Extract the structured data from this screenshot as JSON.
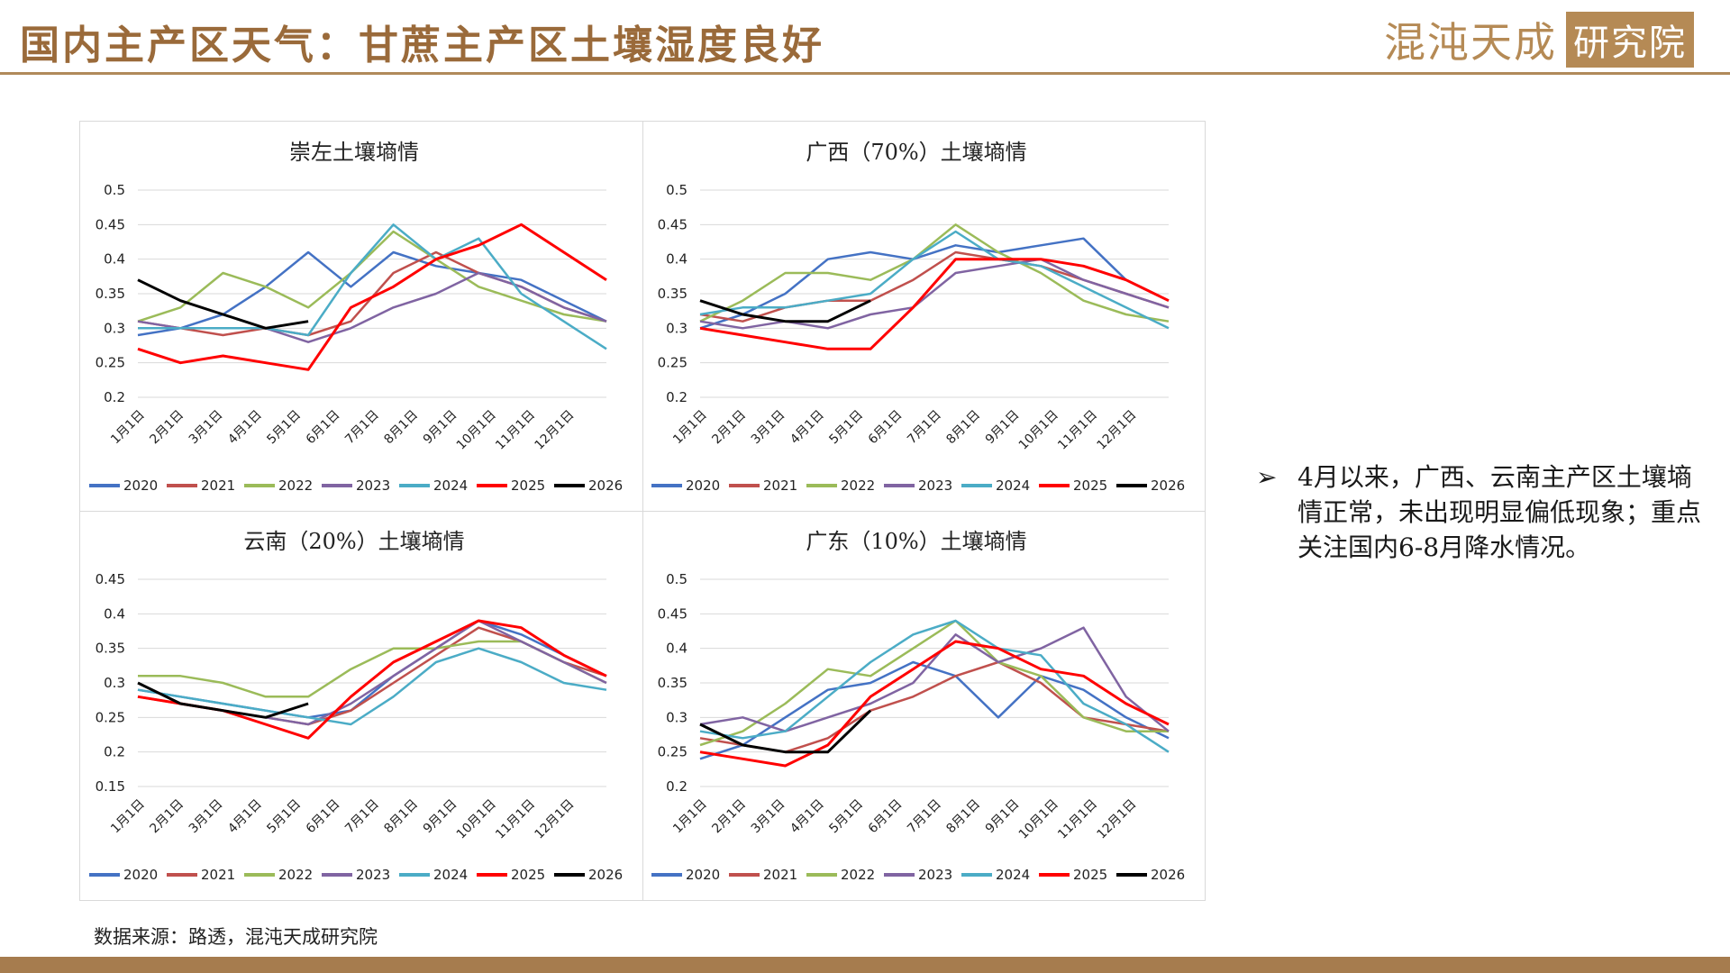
{
  "header": {
    "title": "国内主产区天气：甘蔗主产区土壤湿度良好",
    "brand_text": "混沌天成",
    "brand_box": "研究院"
  },
  "note": {
    "bullet": "➢",
    "text": "4月以来，广西、云南主产区土壤墒情正常，未出现明显偏低现象；重点关注国内6-8月降水情况。"
  },
  "source": "数据来源：路透，混沌天成研究院",
  "colors": {
    "2020": "#4472c4",
    "2021": "#c0504d",
    "2022": "#9bbb59",
    "2023": "#8064a2",
    "2024": "#4bacc6",
    "2025": "#ff0000",
    "2026": "#000000"
  },
  "chart_data": [
    {
      "type": "line",
      "title": "崇左土壤墒情",
      "ylim": [
        0.2,
        0.5
      ],
      "yticks": [
        "0.5",
        "0.45",
        "0.4",
        "0.35",
        "0.3",
        "0.25",
        "0.2"
      ],
      "x_ticks": [
        "1月1日",
        "2月1日",
        "3月1日",
        "4月1日",
        "5月1日",
        "6月1日",
        "7月1日",
        "8月1日",
        "9月1日",
        "10月1日",
        "11月1日",
        "12月1日"
      ],
      "legend": [
        "2020",
        "2021",
        "2022",
        "2023",
        "2024",
        "2025",
        "2026"
      ],
      "legend_position": "bottom",
      "series": [
        {
          "name": "2020",
          "values": [
            0.29,
            0.3,
            0.32,
            0.36,
            0.41,
            0.36,
            0.41,
            0.39,
            0.38,
            0.37,
            0.34,
            0.31
          ]
        },
        {
          "name": "2021",
          "values": [
            0.31,
            0.3,
            0.29,
            0.3,
            0.29,
            0.31,
            0.38,
            0.41,
            0.38,
            0.36,
            0.33,
            0.31
          ]
        },
        {
          "name": "2022",
          "values": [
            0.31,
            0.33,
            0.38,
            0.36,
            0.33,
            0.38,
            0.44,
            0.4,
            0.36,
            0.34,
            0.32,
            0.31
          ]
        },
        {
          "name": "2023",
          "values": [
            0.31,
            0.3,
            0.3,
            0.3,
            0.28,
            0.3,
            0.33,
            0.35,
            0.38,
            0.36,
            0.33,
            0.31
          ]
        },
        {
          "name": "2024",
          "values": [
            0.3,
            0.3,
            0.3,
            0.3,
            0.29,
            0.38,
            0.45,
            0.4,
            0.43,
            0.35,
            0.31,
            0.27
          ]
        },
        {
          "name": "2025",
          "values": [
            0.27,
            0.25,
            0.26,
            0.25,
            0.24,
            0.33,
            0.36,
            0.4,
            0.42,
            0.45,
            0.41,
            0.37
          ]
        },
        {
          "name": "2026",
          "values": [
            0.37,
            0.34,
            0.32,
            0.3,
            0.31
          ]
        }
      ]
    },
    {
      "type": "line",
      "title": "广西（70%）土壤墒情",
      "ylim": [
        0.2,
        0.5
      ],
      "yticks": [
        "0.5",
        "0.45",
        "0.4",
        "0.35",
        "0.3",
        "0.25",
        "0.2"
      ],
      "x_ticks": [
        "1月1日",
        "2月1日",
        "3月1日",
        "4月1日",
        "5月1日",
        "6月1日",
        "7月1日",
        "8月1日",
        "9月1日",
        "10月1日",
        "11月1日",
        "12月1日"
      ],
      "legend": [
        "2020",
        "2021",
        "2022",
        "2023",
        "2024",
        "2025",
        "2026"
      ],
      "legend_position": "bottom",
      "series": [
        {
          "name": "2020",
          "values": [
            0.3,
            0.32,
            0.35,
            0.4,
            0.41,
            0.4,
            0.42,
            0.41,
            0.42,
            0.43,
            0.37,
            0.34
          ]
        },
        {
          "name": "2021",
          "values": [
            0.32,
            0.31,
            0.33,
            0.34,
            0.34,
            0.37,
            0.41,
            0.4,
            0.39,
            0.37,
            0.35,
            0.33
          ]
        },
        {
          "name": "2022",
          "values": [
            0.31,
            0.34,
            0.38,
            0.38,
            0.37,
            0.4,
            0.45,
            0.41,
            0.38,
            0.34,
            0.32,
            0.31
          ]
        },
        {
          "name": "2023",
          "values": [
            0.31,
            0.3,
            0.31,
            0.3,
            0.32,
            0.33,
            0.38,
            0.39,
            0.4,
            0.37,
            0.35,
            0.33
          ]
        },
        {
          "name": "2024",
          "values": [
            0.32,
            0.33,
            0.33,
            0.34,
            0.35,
            0.4,
            0.44,
            0.4,
            0.39,
            0.36,
            0.33,
            0.3
          ]
        },
        {
          "name": "2025",
          "values": [
            0.3,
            0.29,
            0.28,
            0.27,
            0.27,
            0.33,
            0.4,
            0.4,
            0.4,
            0.39,
            0.37,
            0.34
          ]
        },
        {
          "name": "2026",
          "values": [
            0.34,
            0.32,
            0.31,
            0.31,
            0.34
          ]
        }
      ]
    },
    {
      "type": "line",
      "title": "云南（20%）土壤墒情",
      "ylim": [
        0.15,
        0.45
      ],
      "yticks": [
        "0.45",
        "0.4",
        "0.35",
        "0.3",
        "0.25",
        "0.2",
        "0.15"
      ],
      "x_ticks": [
        "1月1日",
        "2月1日",
        "3月1日",
        "4月1日",
        "5月1日",
        "6月1日",
        "7月1日",
        "8月1日",
        "9月1日",
        "10月1日",
        "11月1日",
        "12月1日"
      ],
      "legend": [
        "2020",
        "2021",
        "2022",
        "2023",
        "2024",
        "2025",
        "2026"
      ],
      "legend_position": "bottom",
      "series": [
        {
          "name": "2020",
          "values": [
            0.29,
            0.28,
            0.27,
            0.26,
            0.25,
            0.26,
            0.31,
            0.35,
            0.39,
            0.37,
            0.34,
            0.31
          ]
        },
        {
          "name": "2021",
          "values": [
            0.28,
            0.27,
            0.26,
            0.25,
            0.24,
            0.26,
            0.3,
            0.34,
            0.38,
            0.36,
            0.33,
            0.31
          ]
        },
        {
          "name": "2022",
          "values": [
            0.31,
            0.31,
            0.3,
            0.28,
            0.28,
            0.32,
            0.35,
            0.35,
            0.36,
            0.36,
            0.33,
            0.3
          ]
        },
        {
          "name": "2023",
          "values": [
            0.28,
            0.27,
            0.26,
            0.25,
            0.24,
            0.27,
            0.31,
            0.35,
            0.39,
            0.36,
            0.33,
            0.3
          ]
        },
        {
          "name": "2024",
          "values": [
            0.29,
            0.28,
            0.27,
            0.26,
            0.25,
            0.24,
            0.28,
            0.33,
            0.35,
            0.33,
            0.3,
            0.29
          ]
        },
        {
          "name": "2025",
          "values": [
            0.28,
            0.27,
            0.26,
            0.24,
            0.22,
            0.28,
            0.33,
            0.36,
            0.39,
            0.38,
            0.34,
            0.31
          ]
        },
        {
          "name": "2026",
          "values": [
            0.3,
            0.27,
            0.26,
            0.25,
            0.27
          ]
        }
      ]
    },
    {
      "type": "line",
      "title": "广东（10%）土壤墒情",
      "ylim": [
        0.2,
        0.5
      ],
      "yticks": [
        "0.5",
        "0.45",
        "0.4",
        "0.35",
        "0.3",
        "0.25",
        "0.2"
      ],
      "x_ticks": [
        "1月1日",
        "2月1日",
        "3月1日",
        "4月1日",
        "5月1日",
        "6月1日",
        "7月1日",
        "8月1日",
        "9月1日",
        "10月1日",
        "11月1日",
        "12月1日"
      ],
      "legend": [
        "2020",
        "2021",
        "2022",
        "2023",
        "2024",
        "2025",
        "2026"
      ],
      "legend_position": "bottom",
      "series": [
        {
          "name": "2020",
          "values": [
            0.24,
            0.26,
            0.3,
            0.34,
            0.35,
            0.38,
            0.36,
            0.3,
            0.36,
            0.34,
            0.3,
            0.27
          ]
        },
        {
          "name": "2021",
          "values": [
            0.27,
            0.26,
            0.25,
            0.27,
            0.31,
            0.33,
            0.36,
            0.38,
            0.35,
            0.3,
            0.29,
            0.28
          ]
        },
        {
          "name": "2022",
          "values": [
            0.26,
            0.28,
            0.32,
            0.37,
            0.36,
            0.4,
            0.44,
            0.38,
            0.36,
            0.3,
            0.28,
            0.28
          ]
        },
        {
          "name": "2023",
          "values": [
            0.29,
            0.3,
            0.28,
            0.3,
            0.32,
            0.35,
            0.42,
            0.38,
            0.4,
            0.43,
            0.33,
            0.28
          ]
        },
        {
          "name": "2024",
          "values": [
            0.28,
            0.27,
            0.28,
            0.33,
            0.38,
            0.42,
            0.44,
            0.4,
            0.39,
            0.32,
            0.29,
            0.25
          ]
        },
        {
          "name": "2025",
          "values": [
            0.25,
            0.24,
            0.23,
            0.26,
            0.33,
            0.37,
            0.41,
            0.4,
            0.37,
            0.36,
            0.32,
            0.29
          ]
        },
        {
          "name": "2026",
          "values": [
            0.29,
            0.26,
            0.25,
            0.25,
            0.31
          ]
        }
      ]
    }
  ]
}
